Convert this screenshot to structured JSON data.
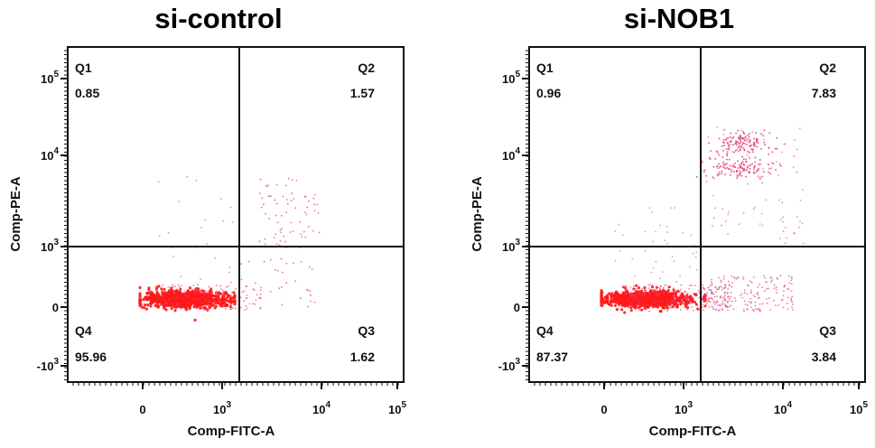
{
  "chart_data": [
    {
      "type": "scatter",
      "title": "si-control",
      "xlabel": "Comp-FITC-A",
      "ylabel": "Comp-PE-A",
      "x_scale": "biexponential",
      "y_scale": "biexponential",
      "xlim": [
        -1000,
        100000
      ],
      "ylim": [
        -1500,
        200000
      ],
      "x_gate": 1500,
      "y_gate": 1000,
      "x_ticks": [
        {
          "base": "0",
          "exp": ""
        },
        {
          "base": "10",
          "exp": "3"
        },
        {
          "base": "10",
          "exp": "4"
        },
        {
          "base": "10",
          "exp": "5"
        }
      ],
      "y_ticks": [
        {
          "base": "-10",
          "exp": "3"
        },
        {
          "base": "0",
          "exp": ""
        },
        {
          "base": "10",
          "exp": "3"
        },
        {
          "base": "10",
          "exp": "4"
        },
        {
          "base": "10",
          "exp": "5"
        }
      ],
      "quadrants": [
        {
          "name": "Q1",
          "value": "0.85"
        },
        {
          "name": "Q2",
          "value": "1.57"
        },
        {
          "name": "Q3",
          "value": "1.62"
        },
        {
          "name": "Q4",
          "value": "95.96"
        }
      ]
    },
    {
      "type": "scatter",
      "title": "si-NOB1",
      "xlabel": "Comp-FITC-A",
      "ylabel": "Comp-PE-A",
      "x_scale": "biexponential",
      "y_scale": "biexponential",
      "xlim": [
        -1000,
        100000
      ],
      "ylim": [
        -1500,
        200000
      ],
      "x_gate": 1500,
      "y_gate": 1000,
      "x_ticks": [
        {
          "base": "0",
          "exp": ""
        },
        {
          "base": "10",
          "exp": "3"
        },
        {
          "base": "10",
          "exp": "4"
        },
        {
          "base": "10",
          "exp": "5"
        }
      ],
      "y_ticks": [
        {
          "base": "-10",
          "exp": "3"
        },
        {
          "base": "0",
          "exp": ""
        },
        {
          "base": "10",
          "exp": "3"
        },
        {
          "base": "10",
          "exp": "4"
        },
        {
          "base": "10",
          "exp": "5"
        }
      ],
      "quadrants": [
        {
          "name": "Q1",
          "value": "0.96"
        },
        {
          "name": "Q2",
          "value": "7.83"
        },
        {
          "name": "Q3",
          "value": "3.84"
        },
        {
          "name": "Q4",
          "value": "87.37"
        }
      ]
    }
  ],
  "colors": {
    "dense": "#ff1a1a",
    "sparse": "#e0407a",
    "axis": "#111111"
  }
}
